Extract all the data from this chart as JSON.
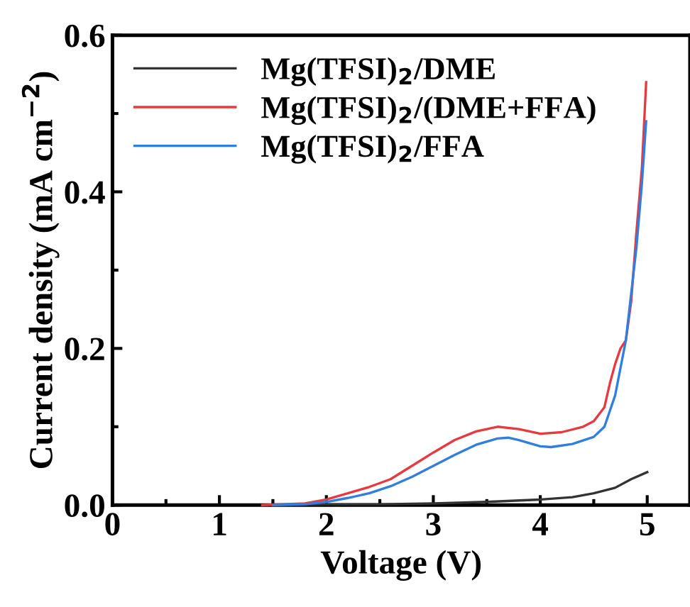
{
  "chart_data": {
    "type": "line",
    "xlabel": "Voltage (V)",
    "ylabel": "Current density (mA cm$^{−2}$)",
    "xlim": [
      0,
      5.4
    ],
    "ylim": [
      0,
      0.6
    ],
    "xticks": [
      0,
      1,
      2,
      3,
      4,
      5
    ],
    "yticks": [
      {
        "value": 0,
        "label": "0.0"
      },
      0.2,
      0.4,
      0.6
    ],
    "grid": false,
    "legend": "top left",
    "series": [
      {
        "name": "Mg(TFSI)$_{2}$/DME",
        "color": "#333333",
        "x": [
          1.5,
          2.0,
          2.5,
          3.0,
          3.5,
          4.0,
          4.3,
          4.5,
          4.7,
          4.85,
          5.0
        ],
        "values": [
          0,
          0.001,
          0.001,
          0.002,
          0.004,
          0.007,
          0.01,
          0.015,
          0.022,
          0.033,
          0.042
        ]
      },
      {
        "name": "Mg(TFSI)$_{2}$/(DME+FFA)",
        "color": "#e8393f",
        "x": [
          1.4,
          1.8,
          2.0,
          2.2,
          2.4,
          2.6,
          2.8,
          3.0,
          3.2,
          3.4,
          3.6,
          3.8,
          4.0,
          4.2,
          4.4,
          4.5,
          4.6,
          4.65,
          4.7,
          4.75,
          4.8,
          4.85,
          4.9,
          4.95,
          4.99
        ],
        "values": [
          0,
          0.002,
          0.007,
          0.015,
          0.023,
          0.033,
          0.05,
          0.067,
          0.083,
          0.094,
          0.1,
          0.097,
          0.091,
          0.093,
          0.1,
          0.107,
          0.125,
          0.155,
          0.18,
          0.2,
          0.21,
          0.26,
          0.35,
          0.43,
          0.54
        ]
      },
      {
        "name": "Mg(TFSI)$_{2}$/FFA",
        "color": "#2f7ee0",
        "x": [
          1.5,
          1.8,
          2.0,
          2.2,
          2.4,
          2.6,
          2.8,
          3.0,
          3.2,
          3.4,
          3.6,
          3.7,
          3.8,
          4.0,
          4.1,
          4.3,
          4.5,
          4.6,
          4.7,
          4.8,
          4.85,
          4.9,
          4.95,
          4.99
        ],
        "values": [
          0,
          0.001,
          0.004,
          0.009,
          0.015,
          0.024,
          0.036,
          0.05,
          0.064,
          0.077,
          0.085,
          0.086,
          0.083,
          0.075,
          0.074,
          0.078,
          0.087,
          0.1,
          0.14,
          0.21,
          0.27,
          0.33,
          0.41,
          0.49
        ]
      }
    ]
  }
}
